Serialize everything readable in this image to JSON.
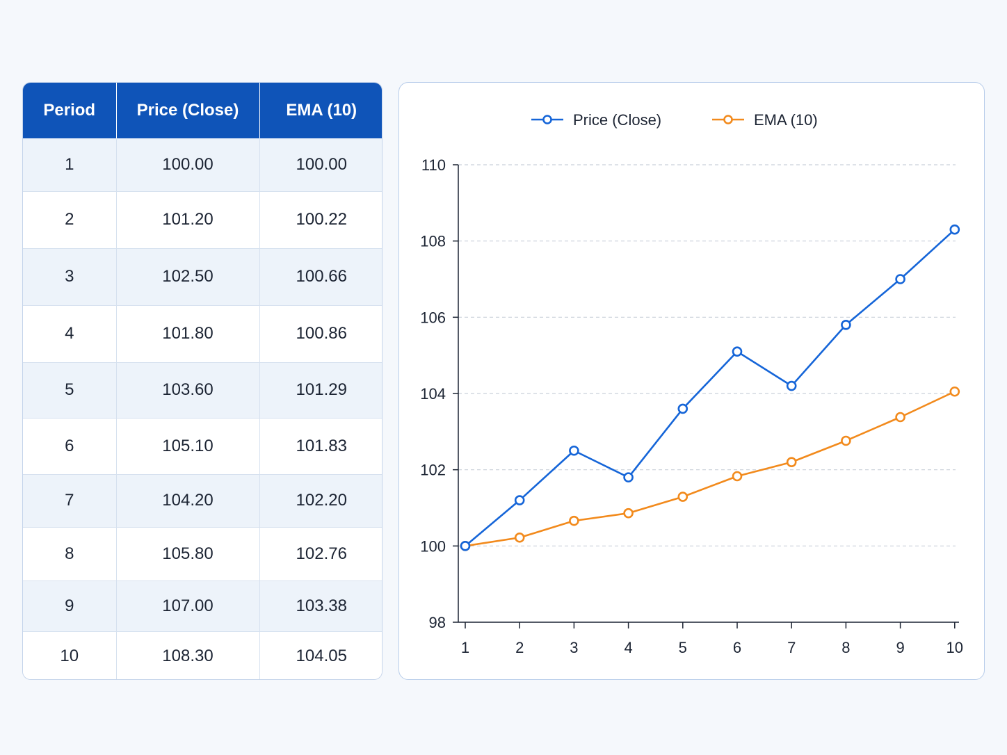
{
  "table": {
    "headers": [
      "Period",
      "Price (Close)",
      "EMA (10)"
    ],
    "rows": [
      [
        "1",
        "100.00",
        "100.00"
      ],
      [
        "2",
        "101.20",
        "100.22"
      ],
      [
        "3",
        "102.50",
        "100.66"
      ],
      [
        "4",
        "101.80",
        "100.86"
      ],
      [
        "5",
        "103.60",
        "101.29"
      ],
      [
        "6",
        "105.10",
        "101.83"
      ],
      [
        "7",
        "104.20",
        "102.20"
      ],
      [
        "8",
        "105.80",
        "102.76"
      ],
      [
        "9",
        "107.00",
        "103.38"
      ],
      [
        "10",
        "108.30",
        "104.05"
      ]
    ]
  },
  "chart_data": {
    "type": "line",
    "title": "",
    "xlabel": "",
    "ylabel": "",
    "x": [
      1,
      2,
      3,
      4,
      5,
      6,
      7,
      8,
      9,
      10
    ],
    "ylim": [
      98,
      110
    ],
    "yticks": [
      98,
      100,
      102,
      104,
      106,
      108,
      110
    ],
    "grid": true,
    "legend_position": "top",
    "series": [
      {
        "name": "Price (Close)",
        "color": "#1565d8",
        "marker": "hollow-circle",
        "values": [
          100.0,
          101.2,
          102.5,
          101.8,
          103.6,
          105.1,
          104.2,
          105.8,
          107.0,
          108.3
        ]
      },
      {
        "name": "EMA (10)",
        "color": "#f28a1c",
        "marker": "hollow-circle",
        "values": [
          100.0,
          100.22,
          100.66,
          100.86,
          101.29,
          101.83,
          102.2,
          102.76,
          103.38,
          104.05
        ]
      }
    ]
  },
  "colors": {
    "header_bg": "#0f54b8",
    "row_alt_bg": "#edf3fa",
    "grid": "#c9d0da",
    "axis": "#1c2433"
  }
}
